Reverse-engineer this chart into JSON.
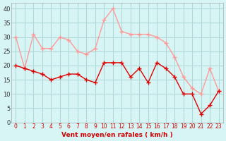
{
  "hours": [
    0,
    1,
    2,
    3,
    4,
    5,
    6,
    7,
    8,
    9,
    10,
    11,
    12,
    13,
    14,
    15,
    16,
    17,
    18,
    19,
    20,
    21,
    22,
    23
  ],
  "vent_moyen": [
    20,
    19,
    18,
    17,
    15,
    16,
    17,
    17,
    15,
    14,
    21,
    21,
    21,
    16,
    19,
    14,
    21,
    19,
    16,
    10,
    10,
    3,
    6,
    11
  ],
  "vent_rafales": [
    30,
    19,
    31,
    26,
    26,
    30,
    29,
    25,
    24,
    26,
    36,
    40,
    32,
    31,
    31,
    31,
    30,
    28,
    23,
    16,
    12,
    10,
    19,
    11
  ],
  "bg_color": "#d8f5f5",
  "grid_color": "#b0d8d8",
  "line_moyen_color": "#dd0000",
  "line_rafales_color": "#ff9999",
  "xlabel": "Vent moyen/en rafales ( km/h )",
  "xlabel_color": "#cc0000",
  "yticks": [
    0,
    5,
    10,
    15,
    20,
    25,
    30,
    35,
    40
  ],
  "ylim": [
    0,
    42
  ],
  "xlim": [
    -0.5,
    23.5
  ]
}
